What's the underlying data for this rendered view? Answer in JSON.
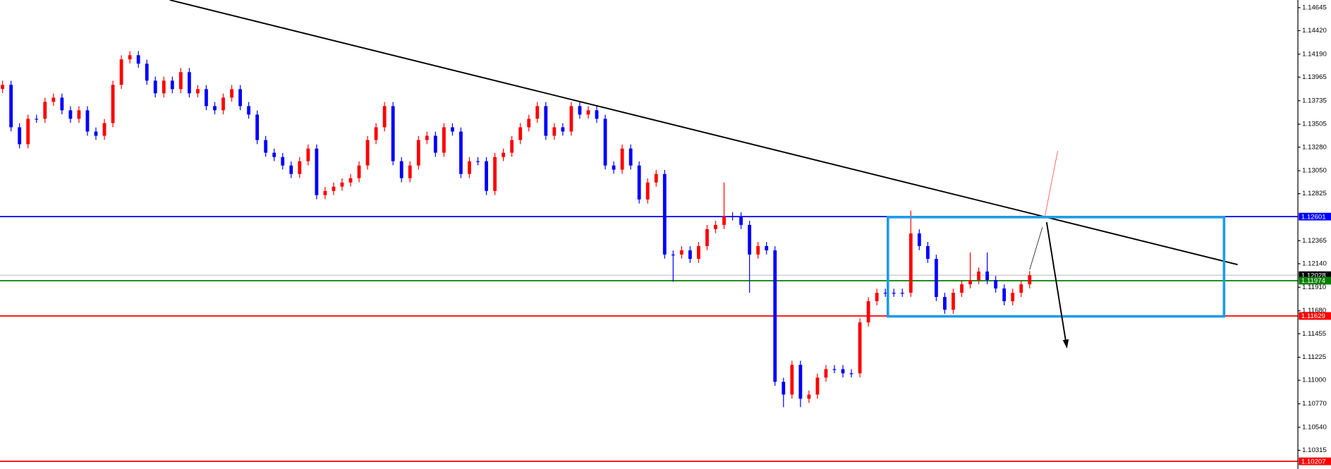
{
  "chart_data": {
    "type": "candlestick",
    "ylim": [
      1.10132,
      1.1472
    ],
    "yticks": [
      1.14645,
      {
        "value": 1.1442,
        "label": "1.14420"
      },
      {
        "value": 1.1419,
        "label": "1.14190"
      },
      1.13965,
      1.13735,
      1.13505,
      {
        "value": 1.1328,
        "label": "1.13280"
      },
      {
        "value": 1.1305,
        "label": "1.13050"
      },
      1.12825,
      1.12365,
      {
        "value": 1.1214,
        "label": "1.12140"
      },
      {
        "value": 1.1191,
        "label": "1.11910"
      },
      {
        "value": 1.1168,
        "label": "1.11680"
      },
      1.11455,
      1.11225,
      {
        "value": 1.11,
        "label": "1.11000"
      },
      {
        "value": 1.1077,
        "label": "1.10770"
      },
      {
        "value": 1.1054,
        "label": "1.10540"
      },
      1.10315
    ],
    "up_color": "#ff0000",
    "down_color": "#0000ff",
    "price_lines": [
      {
        "value": 1.12601,
        "color": "#0000ff"
      },
      {
        "value": 1.12028,
        "color": "#000000"
      },
      {
        "value": 1.11974,
        "color": "#008000"
      },
      {
        "value": 1.11629,
        "color": "#ff0000"
      },
      {
        "value": 1.10207,
        "color": "#ff0000"
      }
    ],
    "candles": [
      [
        1.1385,
        1.1393,
        1.1381,
        1.1389
      ],
      [
        1.1389,
        1.1393,
        1.13435,
        1.13475
      ],
      [
        1.13475,
        1.13515,
        1.13269,
        1.13309
      ],
      [
        1.13309,
        1.13598,
        1.13269,
        1.13558
      ],
      [
        1.13558,
        1.13598,
        1.13518,
        1.13558
      ],
      [
        1.13558,
        1.13764,
        1.13518,
        1.13724
      ],
      [
        1.13724,
        1.13805,
        1.13684,
        1.13765
      ],
      [
        1.13765,
        1.13805,
        1.13601,
        1.13641
      ],
      [
        1.13641,
        1.13681,
        1.13518,
        1.13558
      ],
      [
        1.13558,
        1.13681,
        1.13518,
        1.13641
      ],
      [
        1.13641,
        1.13681,
        1.13393,
        1.13433
      ],
      [
        1.13433,
        1.13473,
        1.13352,
        1.13392
      ],
      [
        1.13392,
        1.13556,
        1.13352,
        1.13516
      ],
      [
        1.13516,
        1.1393,
        1.13476,
        1.1389
      ],
      [
        1.1389,
        1.14179,
        1.1385,
        1.14139
      ],
      [
        1.14139,
        1.1422,
        1.14099,
        1.1418
      ],
      [
        1.1418,
        1.1422,
        1.14057,
        1.14097
      ],
      [
        1.14097,
        1.14137,
        1.13891,
        1.13931
      ],
      [
        1.13931,
        1.13971,
        1.13767,
        1.13807
      ],
      [
        1.13807,
        1.13971,
        1.13767,
        1.13931
      ],
      [
        1.13931,
        1.13971,
        1.13808,
        1.13848
      ],
      [
        1.13848,
        1.14054,
        1.13808,
        1.14014
      ],
      [
        1.14014,
        1.14054,
        1.13767,
        1.13807
      ],
      [
        1.13807,
        1.13888,
        1.13767,
        1.13848
      ],
      [
        1.13848,
        1.13888,
        1.13642,
        1.13682
      ],
      [
        1.13682,
        1.13722,
        1.13601,
        1.13641
      ],
      [
        1.13641,
        1.13805,
        1.13601,
        1.13765
      ],
      [
        1.13765,
        1.13888,
        1.13725,
        1.13848
      ],
      [
        1.13848,
        1.13888,
        1.13642,
        1.13682
      ],
      [
        1.13682,
        1.13722,
        1.13559,
        1.13599
      ],
      [
        1.13599,
        1.13639,
        1.1331,
        1.1335
      ],
      [
        1.1335,
        1.1339,
        1.13186,
        1.13226
      ],
      [
        1.13226,
        1.13266,
        1.13144,
        1.13184
      ],
      [
        1.13184,
        1.13224,
        1.13061,
        1.13101
      ],
      [
        1.13101,
        1.13141,
        1.12978,
        1.13018
      ],
      [
        1.13018,
        1.13183,
        1.12978,
        1.13143
      ],
      [
        1.13143,
        1.13307,
        1.13103,
        1.13267
      ],
      [
        1.13267,
        1.13307,
        1.12771,
        1.12811
      ],
      [
        1.12811,
        1.12892,
        1.12771,
        1.12852
      ],
      [
        1.12852,
        1.12934,
        1.12812,
        1.12894
      ],
      [
        1.12894,
        1.12975,
        1.12854,
        1.12935
      ],
      [
        1.12935,
        1.13017,
        1.12895,
        1.12977
      ],
      [
        1.12977,
        1.13141,
        1.12937,
        1.13101
      ],
      [
        1.13101,
        1.1339,
        1.13061,
        1.1335
      ],
      [
        1.1335,
        1.13515,
        1.1331,
        1.13475
      ],
      [
        1.13475,
        1.13722,
        1.13435,
        1.13682
      ],
      [
        1.13682,
        1.13722,
        1.13103,
        1.13143
      ],
      [
        1.13143,
        1.13183,
        1.12937,
        1.12977
      ],
      [
        1.12977,
        1.13141,
        1.12937,
        1.13101
      ],
      [
        1.13101,
        1.1339,
        1.13061,
        1.1335
      ],
      [
        1.1335,
        1.13432,
        1.1331,
        1.13392
      ],
      [
        1.13392,
        1.13432,
        1.13186,
        1.13226
      ],
      [
        1.13226,
        1.13515,
        1.13186,
        1.13475
      ],
      [
        1.13475,
        1.13515,
        1.13393,
        1.13433
      ],
      [
        1.13433,
        1.13473,
        1.12978,
        1.13018
      ],
      [
        1.13018,
        1.13183,
        1.12978,
        1.13143
      ],
      [
        1.13143,
        1.13183,
        1.13103,
        1.13143
      ],
      [
        1.13143,
        1.13183,
        1.12812,
        1.12852
      ],
      [
        1.12852,
        1.13224,
        1.12812,
        1.13184
      ],
      [
        1.13184,
        1.13266,
        1.13144,
        1.13226
      ],
      [
        1.13226,
        1.1339,
        1.13186,
        1.1335
      ],
      [
        1.1335,
        1.13515,
        1.1331,
        1.13475
      ],
      [
        1.13475,
        1.13598,
        1.13435,
        1.13558
      ],
      [
        1.13558,
        1.13722,
        1.13518,
        1.13682
      ],
      [
        1.13682,
        1.13722,
        1.13352,
        1.13392
      ],
      [
        1.13392,
        1.13515,
        1.13352,
        1.13475
      ],
      [
        1.13475,
        1.13515,
        1.13393,
        1.13433
      ],
      [
        1.13433,
        1.13722,
        1.13393,
        1.13682
      ],
      [
        1.13682,
        1.13722,
        1.13559,
        1.13599
      ],
      [
        1.13599,
        1.13681,
        1.13559,
        1.13641
      ],
      [
        1.13641,
        1.13681,
        1.13518,
        1.13558
      ],
      [
        1.13558,
        1.13598,
        1.13061,
        1.13101
      ],
      [
        1.13101,
        1.13141,
        1.1302,
        1.1306
      ],
      [
        1.1306,
        1.13307,
        1.1302,
        1.13267
      ],
      [
        1.13267,
        1.13307,
        1.13061,
        1.13101
      ],
      [
        1.13101,
        1.13141,
        1.12729,
        1.12769
      ],
      [
        1.12769,
        1.12975,
        1.12729,
        1.12935
      ],
      [
        1.12935,
        1.13058,
        1.12895,
        1.13018
      ],
      [
        1.13018,
        1.13058,
        1.1219,
        1.1223
      ],
      [
        1.1223,
        1.1227,
        1.11964,
        1.1223
      ],
      [
        1.1223,
        1.12311,
        1.1219,
        1.12271
      ],
      [
        1.12271,
        1.12311,
        1.12148,
        1.12188
      ],
      [
        1.12188,
        1.12353,
        1.12148,
        1.12313
      ],
      [
        1.12313,
        1.12519,
        1.12273,
        1.12479
      ],
      [
        1.12479,
        1.1256,
        1.12439,
        1.1252
      ],
      [
        1.1252,
        1.12935,
        1.1248,
        1.12603
      ],
      [
        1.12603,
        1.12643,
        1.12563,
        1.12603
      ],
      [
        1.12603,
        1.12643,
        1.1248,
        1.1252
      ],
      [
        1.1252,
        1.1256,
        1.11856,
        1.1223
      ],
      [
        1.1223,
        1.12353,
        1.1219,
        1.12313
      ],
      [
        1.12313,
        1.12353,
        1.12231,
        1.12271
      ],
      [
        1.12271,
        1.12311,
        1.10945,
        1.10985
      ],
      [
        1.10985,
        1.11025,
        1.10737,
        1.1086
      ],
      [
        1.1086,
        1.11191,
        1.1082,
        1.11151
      ],
      [
        1.11151,
        1.11191,
        1.10737,
        1.10819
      ],
      [
        1.10819,
        1.109,
        1.10779,
        1.1086
      ],
      [
        1.1086,
        1.11066,
        1.1082,
        1.11026
      ],
      [
        1.11026,
        1.11149,
        1.10986,
        1.11109
      ],
      [
        1.11109,
        1.11149,
        1.11069,
        1.11109
      ],
      [
        1.11109,
        1.11149,
        1.11028,
        1.11068
      ],
      [
        1.11068,
        1.11108,
        1.11028,
        1.11068
      ],
      [
        1.11068,
        1.11606,
        1.11028,
        1.11566
      ],
      [
        1.11566,
        1.11813,
        1.11526,
        1.11773
      ],
      [
        1.11773,
        1.11896,
        1.11733,
        1.11856
      ],
      [
        1.11856,
        1.11896,
        1.11816,
        1.11856
      ],
      [
        1.11856,
        1.11896,
        1.11816,
        1.11856
      ],
      [
        1.11856,
        1.11896,
        1.11816,
        1.11856
      ],
      [
        1.11856,
        1.1266,
        1.11816,
        1.12437
      ],
      [
        1.12437,
        1.12477,
        1.12273,
        1.12313
      ],
      [
        1.12313,
        1.12353,
        1.12148,
        1.12188
      ],
      [
        1.12188,
        1.12228,
        1.11775,
        1.11815
      ],
      [
        1.11815,
        1.11855,
        1.1165,
        1.1169
      ],
      [
        1.1169,
        1.11896,
        1.1165,
        1.11856
      ],
      [
        1.11856,
        1.11979,
        1.11816,
        1.11939
      ],
      [
        1.11939,
        1.1225,
        1.11899,
        1.11981
      ],
      [
        1.11981,
        1.12104,
        1.11941,
        1.12064
      ],
      [
        1.12064,
        1.1225,
        1.11941,
        1.11981
      ],
      [
        1.11981,
        1.12021,
        1.11858,
        1.11898
      ],
      [
        1.11898,
        1.11938,
        1.11733,
        1.11773
      ],
      [
        1.11773,
        1.11896,
        1.11733,
        1.11856
      ],
      [
        1.11856,
        1.11979,
        1.11816,
        1.11939
      ],
      [
        1.11939,
        1.12068,
        1.11899,
        1.12028
      ]
    ]
  }
}
